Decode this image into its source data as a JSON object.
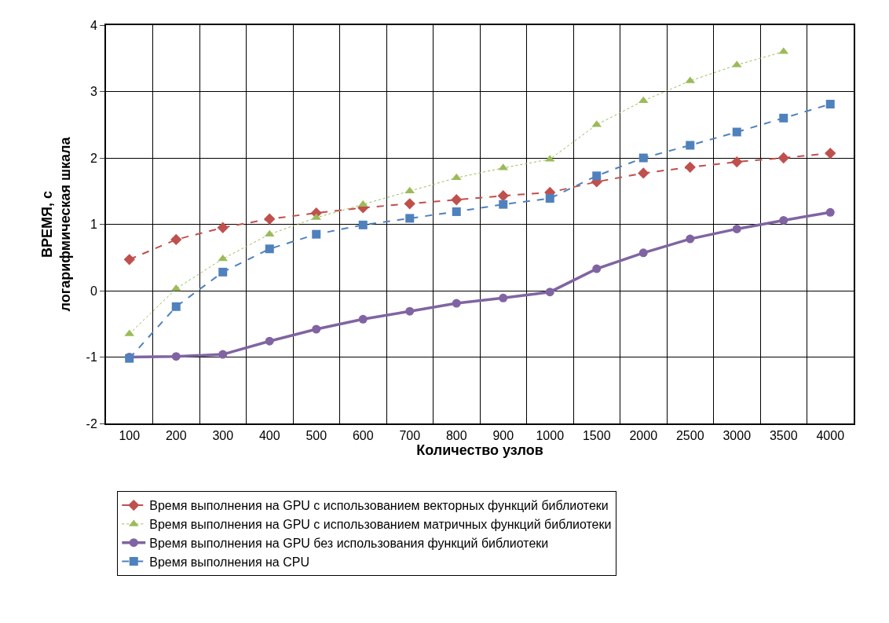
{
  "chart_data": {
    "type": "line",
    "xlabel": "Количество узлов",
    "ylabel": "ВРЕМЯ, с\nлогарифмическая шкала",
    "categories": [
      "100",
      "200",
      "300",
      "400",
      "500",
      "600",
      "700",
      "800",
      "900",
      "1000",
      "1500",
      "2000",
      "2500",
      "3000",
      "3500",
      "4000"
    ],
    "series": [
      {
        "name": "Время выполнения на GPU с использованием векторных функций библиотеки",
        "color": "#c0504d",
        "marker": "diamond",
        "line_style": "dashed",
        "values": [
          0.47,
          0.77,
          0.95,
          1.08,
          1.17,
          1.25,
          1.31,
          1.37,
          1.43,
          1.48,
          1.64,
          1.77,
          1.86,
          1.94,
          2.0,
          2.07
        ]
      },
      {
        "name": "Время выполнения на GPU с использованием матричных функций библиотеки",
        "color": "#9bbb59",
        "marker": "triangle",
        "line_style": "dotted",
        "values": [
          -0.65,
          0.03,
          0.48,
          0.85,
          1.1,
          1.3,
          1.5,
          1.7,
          1.85,
          1.98,
          2.5,
          2.86,
          3.16,
          3.4,
          3.6,
          null
        ]
      },
      {
        "name": "Время выполнения на GPU без использования функций библиотеки",
        "color": "#8064a2",
        "marker": "circle",
        "line_style": "solid",
        "values": [
          -1.0,
          -0.99,
          -0.96,
          -0.76,
          -0.58,
          -0.43,
          -0.31,
          -0.19,
          -0.11,
          -0.02,
          0.33,
          0.57,
          0.78,
          0.93,
          1.06,
          1.18
        ]
      },
      {
        "name": "Время выполнения на CPU",
        "color": "#4f81bd",
        "marker": "square",
        "line_style": "dashed",
        "values": [
          -1.02,
          -0.24,
          0.28,
          0.63,
          0.85,
          0.99,
          1.09,
          1.19,
          1.3,
          1.39,
          1.73,
          2.0,
          2.19,
          2.39,
          2.6,
          2.81
        ]
      }
    ],
    "ylim": [
      -2,
      4
    ],
    "yticks": [
      -2,
      -1,
      0,
      1,
      2,
      3,
      4
    ],
    "grid": true,
    "legend": "bottom"
  }
}
